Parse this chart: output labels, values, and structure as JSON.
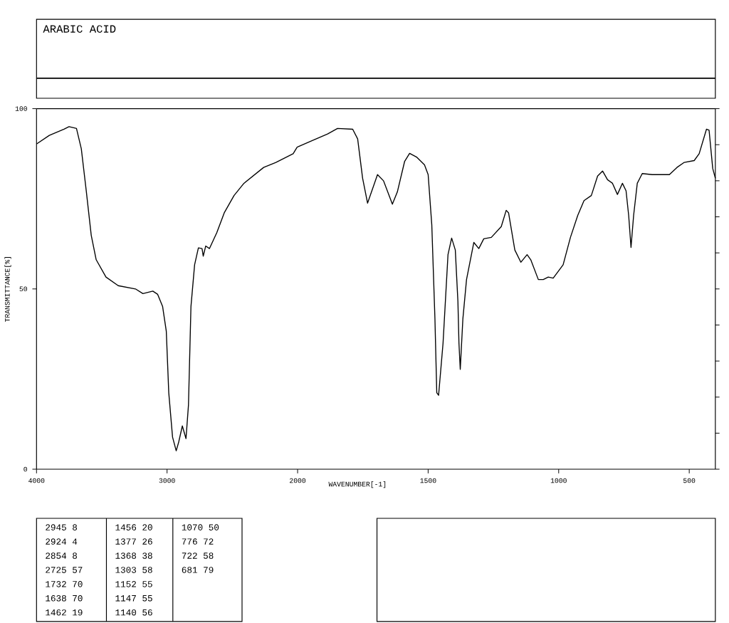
{
  "chart_data": [
    {
      "type": "line",
      "title": "ARABIC ACID",
      "ylabel": "TRANSMITTANCE[%]",
      "color": "#000000",
      "marker": "none",
      "line_style": "solid",
      "xlim": [
        4000,
        2000
      ],
      "ylim": [
        0,
        100
      ],
      "xticks": [
        4000,
        3000,
        2000
      ],
      "yticks": [
        0,
        50,
        100
      ],
      "x": [
        4000,
        3902,
        3789,
        3751,
        3694,
        3657,
        3619,
        3581,
        3543,
        3468,
        3374,
        3242,
        3185,
        3109,
        3072,
        3034,
        3006,
        2987,
        2958,
        2930,
        2911,
        2883,
        2855,
        2836,
        2817,
        2789,
        2760,
        2732,
        2723,
        2704,
        2675,
        2619,
        2562,
        2487,
        2411,
        2260,
        2166,
        2034,
        2006,
        2000
      ],
      "values": [
        90.2,
        92.6,
        94.3,
        95.0,
        94.5,
        88.9,
        77.2,
        64.9,
        58.1,
        53.3,
        50.9,
        50.0,
        48.7,
        49.4,
        48.5,
        45.1,
        38.3,
        21.2,
        8.9,
        5.1,
        7.5,
        12.0,
        8.5,
        17.8,
        45.1,
        56.7,
        61.4,
        61.2,
        59.1,
        61.9,
        61.2,
        65.6,
        71.1,
        75.9,
        79.3,
        83.7,
        85.1,
        87.5,
        89.2,
        89.4
      ],
      "annotations": [
        "2945 8",
        "2924 4",
        "2854 8",
        "2725 57",
        "1732 70",
        "1638 70",
        "1462 19",
        "1456 20",
        "1377 26",
        "1368 38",
        "1303 58",
        "1152 55",
        "1147 55",
        "1140 56",
        "1070 50",
        "776 72",
        "722 58",
        "681 79"
      ]
    },
    {
      "type": "line",
      "xlabel": "WAVENUMBER[-1]",
      "color": "#000000",
      "marker": "none",
      "line_style": "solid",
      "xlim": [
        2000,
        400
      ],
      "ylim": [
        0,
        100
      ],
      "xticks": [
        1500,
        1000,
        500
      ],
      "tick_labels": "x",
      "x": [
        2000,
        1942,
        1885,
        1847,
        1789,
        1770,
        1751,
        1732,
        1694,
        1671,
        1637,
        1618,
        1590,
        1571,
        1543,
        1514,
        1500,
        1486,
        1474,
        1467,
        1460,
        1443,
        1424,
        1410,
        1396,
        1386,
        1382,
        1377,
        1367,
        1353,
        1325,
        1306,
        1287,
        1258,
        1220,
        1201,
        1192,
        1168,
        1145,
        1121,
        1107,
        1078,
        1059,
        1040,
        1021,
        983,
        955,
        927,
        903,
        875,
        851,
        832,
        813,
        794,
        775,
        756,
        742,
        732,
        723,
        713,
        699,
        680,
        642,
        576,
        547,
        519,
        481,
        462,
        434,
        424,
        410,
        400
      ],
      "values": [
        89.4,
        91.2,
        93.0,
        94.5,
        94.3,
        91.6,
        80.7,
        73.8,
        81.7,
        80.0,
        73.5,
        76.9,
        85.4,
        87.6,
        86.5,
        84.4,
        81.7,
        67.7,
        41.7,
        21.2,
        20.5,
        34.9,
        59.5,
        64.1,
        60.8,
        46.5,
        34.9,
        27.7,
        41.7,
        52.6,
        62.9,
        61.2,
        63.9,
        64.3,
        67.3,
        71.8,
        71.1,
        60.8,
        57.4,
        59.5,
        58.1,
        52.6,
        52.6,
        53.3,
        53.0,
        56.7,
        64.3,
        70.4,
        74.5,
        75.9,
        81.3,
        82.7,
        80.3,
        79.3,
        76.2,
        79.3,
        77.2,
        70.4,
        61.5,
        70.4,
        79.3,
        82.0,
        81.7,
        81.7,
        83.7,
        85.1,
        85.6,
        87.5,
        94.3,
        94.0,
        83.4,
        80.7
      ]
    }
  ]
}
